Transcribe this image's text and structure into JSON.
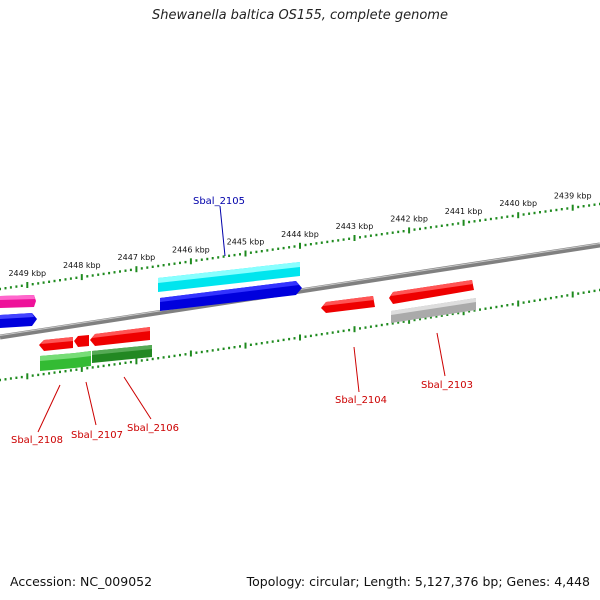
{
  "title": "Shewanella baltica OS155, complete genome",
  "accession": "Accession: NC_009052",
  "summary": "Topology: circular; Length: 5,127,376 bp; Genes: 4,448",
  "scale_ticks": [
    "2449 kbp",
    "2448 kbp",
    "2447 kbp",
    "2446 kbp",
    "2445 kbp",
    "2444 kbp",
    "2443 kbp",
    "2442 kbp",
    "2441 kbp",
    "2440 kbp",
    "2439 kbp"
  ],
  "gene_labels": {
    "sbal_2105": "Sbal_2105",
    "sbal_2104": "Sbal_2104",
    "sbal_2103": "Sbal_2103",
    "sbal_2106": "Sbal_2106",
    "sbal_2107": "Sbal_2107",
    "sbal_2108": "Sbal_2108"
  },
  "colors": {
    "backbone": "#808080",
    "scale_ticks": "#1e8a1e",
    "label_highlight": "#0000aa",
    "label_normal": "#cc0000",
    "gene_cyan": "#00e5ee",
    "gene_blue": "#0000dd",
    "gene_red": "#ee0000",
    "gene_green": "#33bb33",
    "gene_gray": "#aaaaaa",
    "gene_magenta": "#ee1199"
  }
}
